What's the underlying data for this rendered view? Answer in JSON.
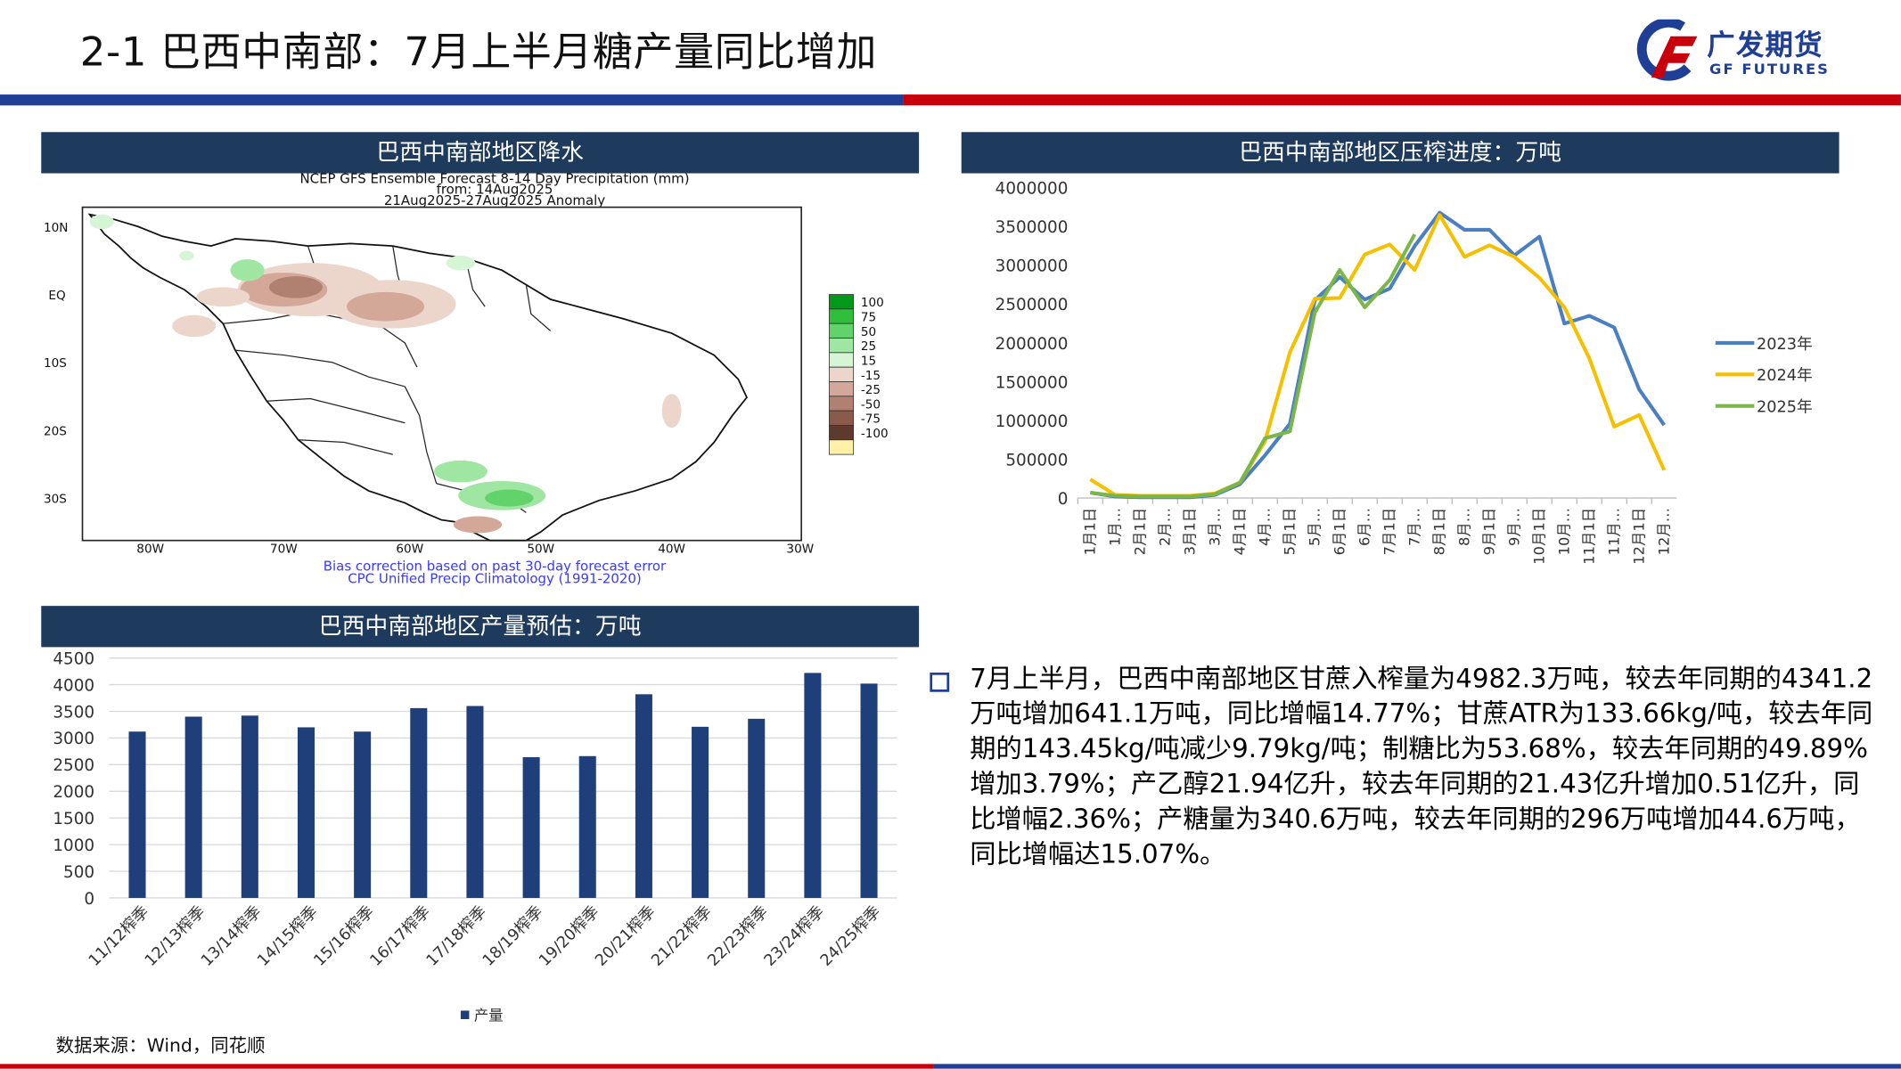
{
  "title": "2-1 巴西中南部：7月上半月糖产量同比增加",
  "logo": {
    "cn": "广发期货",
    "en": "GF FUTURES"
  },
  "colors": {
    "navy": "#1f3f96",
    "red": "#c7000b",
    "panel_header": "#1e3a5c"
  },
  "map_panel": {
    "header": "巴西中南部地区降水",
    "map_title_lines": [
      "NCEP GFS Ensemble Forecast 8-14 Day Precipitation (mm)",
      "from: 14Aug2025",
      "21Aug2025-27Aug2025 Anomaly"
    ],
    "lat_labels": [
      "10N",
      "EQ",
      "10S",
      "20S",
      "30S"
    ],
    "lon_labels": [
      "80W",
      "70W",
      "60W",
      "50W",
      "40W",
      "30W"
    ],
    "colorbar": [
      {
        "label": "100",
        "color": "#009a1a"
      },
      {
        "label": "75",
        "color": "#2fbf3a"
      },
      {
        "label": "50",
        "color": "#62d36a"
      },
      {
        "label": "25",
        "color": "#9fe6a3"
      },
      {
        "label": "15",
        "color": "#d6f5d4"
      },
      {
        "label": "-15",
        "color": "#ecd6cc"
      },
      {
        "label": "-25",
        "color": "#d3a898"
      },
      {
        "label": "-50",
        "color": "#b08070"
      },
      {
        "label": "-75",
        "color": "#8a5a4a"
      },
      {
        "label": "-100",
        "color": "#5e3a2e"
      },
      {
        "label": "",
        "color": "#fff2a8"
      }
    ],
    "footer_lines": [
      "Bias correction based on past 30-day forecast error",
      "CPC Unified Precip Climatology (1991-2020)"
    ]
  },
  "crush_panel": {
    "header": "巴西中南部地区压榨进度：万吨"
  },
  "output_panel": {
    "header": "巴西中南部地区产量预估：万吨"
  },
  "chart_data": [
    {
      "type": "line",
      "title": "巴西中南部地区压榨进度：万吨",
      "categories": [
        "1月1日",
        "1月…",
        "2月1日",
        "2月…",
        "3月1日",
        "3月…",
        "4月1日",
        "4月…",
        "5月1日",
        "5月…",
        "6月1日",
        "6月…",
        "7月1日",
        "7月…",
        "8月1日",
        "8月…",
        "9月1日",
        "9月…",
        "10月1日",
        "10月…",
        "11月1日",
        "11月…",
        "12月1日",
        "12月…"
      ],
      "ylim": [
        0,
        4000000
      ],
      "yticks": [
        0,
        500000,
        1000000,
        1500000,
        2000000,
        2500000,
        3000000,
        3500000,
        4000000
      ],
      "legend_position": "right",
      "series": [
        {
          "name": "2023年",
          "color": "#4a7fc1",
          "values": [
            70000,
            20000,
            10000,
            10000,
            10000,
            40000,
            180000,
            550000,
            960000,
            2550000,
            2850000,
            2560000,
            2700000,
            3250000,
            3680000,
            3460000,
            3460000,
            3130000,
            3370000,
            2250000,
            2350000,
            2200000,
            1400000,
            940000
          ]
        },
        {
          "name": "2024年",
          "color": "#f5c000",
          "values": [
            240000,
            40000,
            30000,
            30000,
            30000,
            60000,
            200000,
            730000,
            1880000,
            2570000,
            2580000,
            3140000,
            3270000,
            2940000,
            3650000,
            3110000,
            3260000,
            3110000,
            2840000,
            2460000,
            1800000,
            920000,
            1070000,
            360000
          ]
        },
        {
          "name": "2025年",
          "color": "#7ab648",
          "values": [
            70000,
            30000,
            20000,
            20000,
            20000,
            50000,
            200000,
            770000,
            860000,
            2390000,
            2940000,
            2460000,
            2810000,
            3400000,
            null,
            null,
            null,
            null,
            null,
            null,
            null,
            null,
            null,
            null
          ]
        }
      ]
    },
    {
      "type": "bar",
      "title": "巴西中南部地区产量预估：万吨",
      "categories": [
        "11/12榨季",
        "12/13榨季",
        "13/14榨季",
        "14/15榨季",
        "15/16榨季",
        "16/17榨季",
        "17/18榨季",
        "18/19榨季",
        "19/20榨季",
        "20/21榨季",
        "21/22榨季",
        "22/23榨季",
        "23/24榨季",
        "24/25榨季"
      ],
      "ylim": [
        0,
        4500
      ],
      "yticks": [
        0,
        500,
        1000,
        1500,
        2000,
        2500,
        3000,
        3500,
        4000,
        4500
      ],
      "legend_position": "bottom",
      "series": [
        {
          "name": "产量",
          "color": "#1f3f7a",
          "values": [
            3120,
            3400,
            3420,
            3200,
            3120,
            3560,
            3600,
            2640,
            2660,
            3820,
            3210,
            3360,
            4220,
            4020
          ]
        }
      ]
    }
  ],
  "bullet": {
    "text": "7月上半月，巴西中南部地区甘蔗入榨量为4982.3万吨，较去年同期的4341.2万吨增加641.1万吨，同比增幅14.77%；甘蔗ATR为133.66kg/吨，较去年同期的143.45kg/吨减少9.79kg/吨；制糖比为53.68%，较去年同期的49.89%增加3.79%；产乙醇21.94亿升，较去年同期的21.43亿升增加0.51亿升，同比增幅2.36%；产糖量为340.6万吨，较去年同期的296万吨增加44.6万吨，同比增幅达15.07%。"
  },
  "source": "数据来源：Wind，同花顺"
}
